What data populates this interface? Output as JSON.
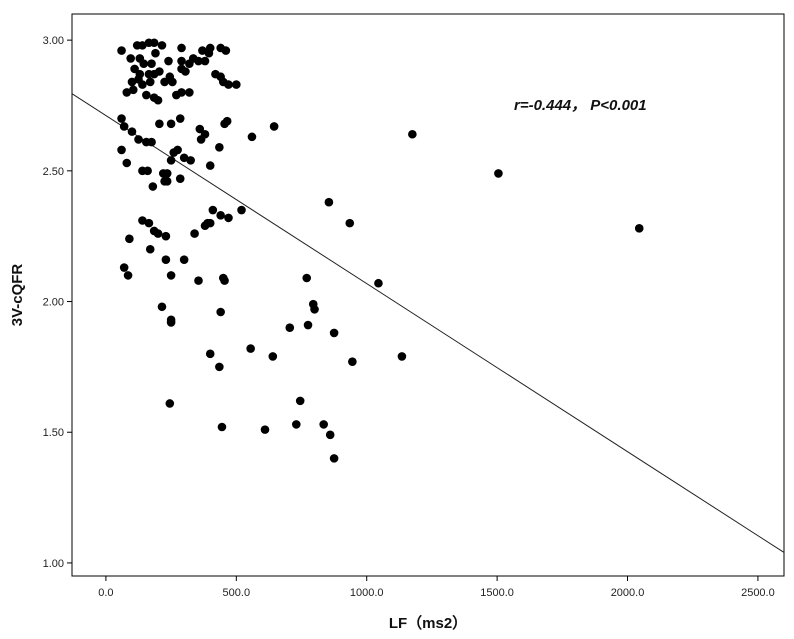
{
  "chart_data": {
    "type": "scatter",
    "title": "",
    "xlabel": "LF（ms2）",
    "ylabel": "3V-cQFR",
    "annotation": "r=-0.444， P<0.001",
    "xlim": [
      -130,
      2600
    ],
    "ylim": [
      0.95,
      3.1
    ],
    "x_ticks": [
      0,
      500,
      1000,
      1500,
      2000,
      2500
    ],
    "x_tick_labels": [
      "0.0",
      "500.0",
      "1000.0",
      "1500.0",
      "2000.0",
      "2500.0"
    ],
    "y_ticks": [
      1.0,
      1.5,
      2.0,
      2.5,
      3.0
    ],
    "y_tick_labels": [
      "1.00",
      "1.50",
      "2.00",
      "2.50",
      "3.00"
    ],
    "grid": false,
    "point_color": "#000000",
    "fit_line": {
      "x": [
        -130,
        2600
      ],
      "y": [
        2.795,
        1.04
      ]
    },
    "points": [
      [
        60,
        2.96
      ],
      [
        120,
        2.98
      ],
      [
        140,
        2.98
      ],
      [
        165,
        2.99
      ],
      [
        185,
        2.99
      ],
      [
        215,
        2.98
      ],
      [
        290,
        2.97
      ],
      [
        370,
        2.96
      ],
      [
        400,
        2.97
      ],
      [
        440,
        2.97
      ],
      [
        460,
        2.96
      ],
      [
        95,
        2.93
      ],
      [
        130,
        2.93
      ],
      [
        145,
        2.91
      ],
      [
        175,
        2.91
      ],
      [
        190,
        2.95
      ],
      [
        240,
        2.92
      ],
      [
        290,
        2.92
      ],
      [
        335,
        2.93
      ],
      [
        355,
        2.92
      ],
      [
        380,
        2.92
      ],
      [
        395,
        2.95
      ],
      [
        110,
        2.89
      ],
      [
        130,
        2.87
      ],
      [
        165,
        2.87
      ],
      [
        185,
        2.87
      ],
      [
        205,
        2.88
      ],
      [
        245,
        2.86
      ],
      [
        290,
        2.89
      ],
      [
        305,
        2.88
      ],
      [
        320,
        2.91
      ],
      [
        420,
        2.87
      ],
      [
        440,
        2.86
      ],
      [
        100,
        2.84
      ],
      [
        125,
        2.85
      ],
      [
        140,
        2.83
      ],
      [
        170,
        2.84
      ],
      [
        225,
        2.84
      ],
      [
        255,
        2.84
      ],
      [
        450,
        2.84
      ],
      [
        470,
        2.83
      ],
      [
        500,
        2.83
      ],
      [
        80,
        2.8
      ],
      [
        105,
        2.81
      ],
      [
        155,
        2.79
      ],
      [
        185,
        2.78
      ],
      [
        200,
        2.77
      ],
      [
        270,
        2.79
      ],
      [
        290,
        2.8
      ],
      [
        320,
        2.8
      ],
      [
        60,
        2.7
      ],
      [
        70,
        2.67
      ],
      [
        100,
        2.65
      ],
      [
        125,
        2.62
      ],
      [
        155,
        2.61
      ],
      [
        175,
        2.61
      ],
      [
        205,
        2.68
      ],
      [
        250,
        2.68
      ],
      [
        285,
        2.7
      ],
      [
        360,
        2.66
      ],
      [
        380,
        2.64
      ],
      [
        455,
        2.68
      ],
      [
        465,
        2.69
      ],
      [
        560,
        2.63
      ],
      [
        645,
        2.67
      ],
      [
        60,
        2.58
      ],
      [
        80,
        2.53
      ],
      [
        140,
        2.5
      ],
      [
        160,
        2.5
      ],
      [
        220,
        2.49
      ],
      [
        235,
        2.49
      ],
      [
        250,
        2.54
      ],
      [
        260,
        2.57
      ],
      [
        275,
        2.58
      ],
      [
        300,
        2.55
      ],
      [
        325,
        2.54
      ],
      [
        365,
        2.62
      ],
      [
        400,
        2.52
      ],
      [
        435,
        2.59
      ],
      [
        180,
        2.44
      ],
      [
        225,
        2.46
      ],
      [
        235,
        2.46
      ],
      [
        285,
        2.47
      ],
      [
        140,
        2.31
      ],
      [
        165,
        2.3
      ],
      [
        185,
        2.27
      ],
      [
        200,
        2.26
      ],
      [
        230,
        2.25
      ],
      [
        400,
        2.3
      ],
      [
        410,
        2.35
      ],
      [
        440,
        2.33
      ],
      [
        470,
        2.32
      ],
      [
        520,
        2.35
      ],
      [
        90,
        2.24
      ],
      [
        170,
        2.2
      ],
      [
        230,
        2.16
      ],
      [
        300,
        2.16
      ],
      [
        340,
        2.26
      ],
      [
        380,
        2.29
      ],
      [
        390,
        2.3
      ],
      [
        855,
        2.38
      ],
      [
        935,
        2.3
      ],
      [
        70,
        2.13
      ],
      [
        85,
        2.1
      ],
      [
        250,
        2.1
      ],
      [
        355,
        2.08
      ],
      [
        450,
        2.09
      ],
      [
        455,
        2.08
      ],
      [
        770,
        2.09
      ],
      [
        1045,
        2.07
      ],
      [
        215,
        1.98
      ],
      [
        250,
        1.93
      ],
      [
        440,
        1.96
      ],
      [
        795,
        1.99
      ],
      [
        800,
        1.97
      ],
      [
        250,
        1.92
      ],
      [
        705,
        1.9
      ],
      [
        775,
        1.91
      ],
      [
        875,
        1.88
      ],
      [
        400,
        1.8
      ],
      [
        435,
        1.75
      ],
      [
        555,
        1.82
      ],
      [
        640,
        1.79
      ],
      [
        945,
        1.77
      ],
      [
        1135,
        1.79
      ],
      [
        245,
        1.61
      ],
      [
        745,
        1.62
      ],
      [
        445,
        1.52
      ],
      [
        610,
        1.51
      ],
      [
        730,
        1.53
      ],
      [
        835,
        1.53
      ],
      [
        860,
        1.49
      ],
      [
        875,
        1.4
      ],
      [
        1175,
        2.64
      ],
      [
        1505,
        2.49
      ],
      [
        2045,
        2.28
      ]
    ]
  }
}
